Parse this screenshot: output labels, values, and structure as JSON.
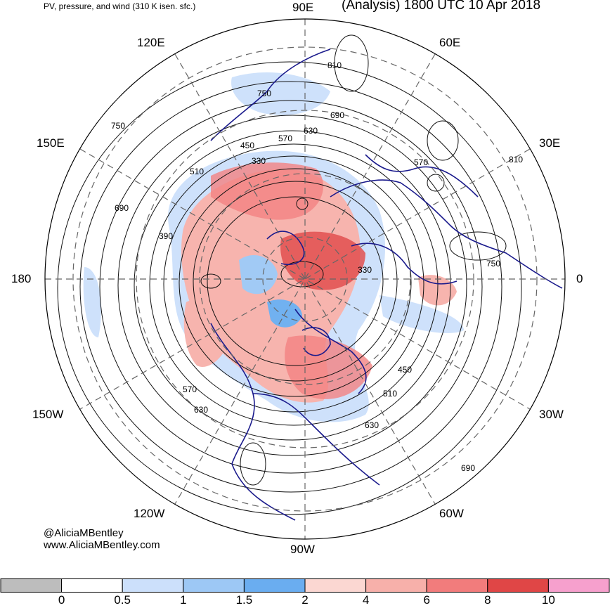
{
  "header": {
    "title_left": "PV, pressure, and wind (310 K isen. sfc.)",
    "title_right": "(Analysis) 1800 UTC 10 Apr 2018"
  },
  "longitude_labels": [
    {
      "key": "90e",
      "text": "90E"
    },
    {
      "key": "60e",
      "text": "60E"
    },
    {
      "key": "30e",
      "text": "30E"
    },
    {
      "key": "0",
      "text": "0"
    },
    {
      "key": "30w",
      "text": "30W"
    },
    {
      "key": "60w",
      "text": "60W"
    },
    {
      "key": "90w",
      "text": "90W"
    },
    {
      "key": "120w",
      "text": "120W"
    },
    {
      "key": "150w",
      "text": "150W"
    },
    {
      "key": "180",
      "text": "180"
    },
    {
      "key": "150e",
      "text": "150E"
    },
    {
      "key": "120e",
      "text": "120E"
    }
  ],
  "contour_labels": [
    "810",
    "750",
    "690",
    "630",
    "570",
    "510",
    "450",
    "390",
    "330",
    "750",
    "690",
    "630",
    "570",
    "510",
    "450",
    "330",
    "810",
    "750",
    "690",
    "630",
    "570"
  ],
  "credit": {
    "handle": "@AliciaMBentley",
    "site": "www.AliciaMBentley.com"
  },
  "colorbar": {
    "bins": [
      {
        "color": "#bdbdbd"
      },
      {
        "color": "#ffffff"
      },
      {
        "color": "#cce0fb"
      },
      {
        "color": "#9dc8f5"
      },
      {
        "color": "#6aadf0"
      },
      {
        "color": "#fbd7d2"
      },
      {
        "color": "#f7b0aa"
      },
      {
        "color": "#f27c7c"
      },
      {
        "color": "#e04646"
      },
      {
        "color": "#f6a0cd"
      }
    ],
    "tick_labels": [
      "0",
      "0.5",
      "1",
      "1.5",
      "2",
      "4",
      "6",
      "8",
      "10"
    ]
  },
  "colors": {
    "coastline": "#1a1a8c",
    "isobars": "#111111",
    "graticule": "#666666"
  }
}
